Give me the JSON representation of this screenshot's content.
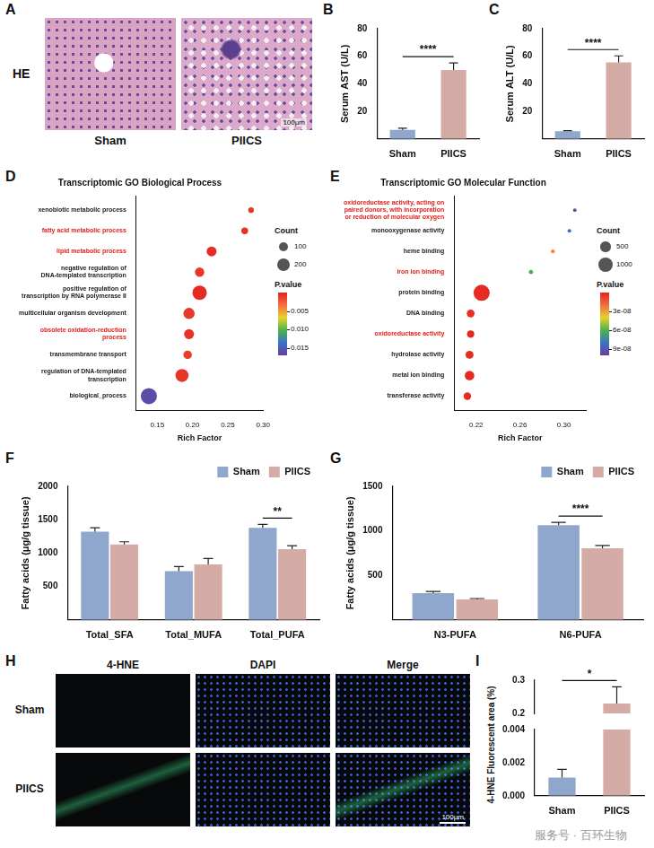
{
  "chart_data": [
    {
      "panel": "B",
      "type": "bar",
      "categories": [
        "Sham",
        "PIICS"
      ],
      "values": [
        6.5,
        50
      ],
      "errors": [
        1.3,
        5.2
      ],
      "colors": [
        "#8fa6cd",
        "#d5aba5"
      ],
      "y_label": "Serum AST (U/L)",
      "ylim": [
        0,
        80
      ],
      "yticks": [
        0,
        20,
        40,
        60,
        80
      ],
      "grid": false,
      "significance": [
        {
          "label": "****"
        }
      ]
    },
    {
      "panel": "C",
      "type": "bar",
      "categories": [
        "Sham",
        "PIICS"
      ],
      "values": [
        5.5,
        55.5
      ],
      "errors": [
        0.5,
        4.8
      ],
      "colors": [
        "#8fa6cd",
        "#d5aba5"
      ],
      "y_label": "Serum ALT (U/L)",
      "ylim": [
        0,
        80
      ],
      "yticks": [
        0,
        20,
        40,
        60,
        80
      ],
      "grid": false,
      "significance": [
        {
          "label": "****"
        }
      ]
    },
    {
      "panel": "D",
      "type": "bubble",
      "title": "Transcriptomic GO Biological Process",
      "categories": [
        "xenobiotic metabolic process",
        "fatty acid metabolic process",
        "lipid metabolic process",
        "negative regulation of DNA-templated transcription",
        "positive regulation of transcription by RNA polymerase II",
        "multicellular organism development",
        "obsolete oxidation-reduction process",
        "transmembrane transport",
        "regulation of DNA-templated transcription",
        "biological_process"
      ],
      "x": [
        0.283,
        0.274,
        0.227,
        0.21,
        0.21,
        0.195,
        0.195,
        0.193,
        0.185,
        0.138
      ],
      "counts": [
        35,
        50,
        110,
        95,
        230,
        140,
        110,
        80,
        190,
        290
      ],
      "p_values": [
        0.0008,
        0.0006,
        0.0004,
        0.0009,
        0.0003,
        0.001,
        0.0007,
        0.0012,
        0.0008,
        0.016
      ],
      "highlight": [
        "fatty acid metabolic process",
        "lipid metabolic process",
        "obsolete oxidation-reduction process"
      ],
      "x_label": "Rich Factor",
      "xlim": [
        0.12,
        0.3
      ],
      "xticks": [
        0.15,
        {
          "value": 0.2,
          "label": "0.20"
        },
        0.25,
        {
          "value": 0.3,
          "label": "0.30"
        }
      ],
      "size_legend": {
        "title": "Count",
        "values": [
          100,
          200
        ]
      },
      "color_bar": {
        "title": "P.value",
        "range": [
          0,
          0.017
        ],
        "ticks": [
          0.005,
          {
            "value": 0.01,
            "label": "0.010"
          },
          0.015
        ]
      },
      "grid": false
    },
    {
      "panel": "E",
      "type": "bubble",
      "title": "Transcriptomic GO Molecular Function",
      "categories": [
        "oxidoreductase activity, acting on paired donors, with incorporation or reduction of molecular oxygen",
        "monooxygenase activity",
        "heme binding",
        "iron ion binding",
        "protein binding",
        "DNA binding",
        "oxidoreductase activity",
        "hydrolase activity",
        "metal ion binding",
        "transferase activity"
      ],
      "x": [
        0.31,
        0.305,
        0.29,
        0.27,
        0.225,
        0.215,
        0.215,
        0.214,
        0.214,
        0.212
      ],
      "counts": [
        60,
        65,
        75,
        90,
        1300,
        300,
        260,
        320,
        450,
        280
      ],
      "p_values": [
        9.5e-08,
        8.2e-08,
        2.5e-08,
        6e-08,
        2e-09,
        3e-09,
        1e-09,
        2e-09,
        1.5e-09,
        2e-09
      ],
      "highlight": [
        "oxidoreductase activity, acting on paired donors, with incorporation or reduction of molecular oxygen",
        "iron ion binding",
        "oxidoreductase activity"
      ],
      "x_label": "Rich Factor",
      "xlim": [
        0.2,
        0.32
      ],
      "xticks": [
        0.22,
        0.26,
        {
          "value": 0.3,
          "label": "0.30"
        }
      ],
      "size_legend": {
        "title": "Count",
        "values": [
          500,
          1000
        ]
      },
      "color_bar": {
        "title": "P.value",
        "range": [
          0,
          1e-07
        ],
        "ticks": [
          {
            "value": 3e-08,
            "label": "3e-08"
          },
          {
            "value": 6e-08,
            "label": "6e-08"
          },
          {
            "value": 9e-08,
            "label": "9e-08"
          }
        ]
      },
      "grid": false
    },
    {
      "panel": "F",
      "type": "bar",
      "categories": [
        "Total_SFA",
        "Total_MUFA",
        "Total_PUFA"
      ],
      "series": [
        {
          "name": "Sham",
          "color": "#8fa6cd",
          "values": [
            1320,
            730,
            1380
          ],
          "errors": [
            60,
            70,
            50
          ]
        },
        {
          "name": "PIICS",
          "color": "#d5aba5",
          "values": [
            1130,
            830,
            1060
          ],
          "errors": [
            40,
            90,
            50
          ]
        }
      ],
      "y_label": "Fatty acids (μg/g tissue)",
      "ylim": [
        0,
        2000
      ],
      "yticks": [
        0,
        500,
        1000,
        1500,
        2000
      ],
      "legend": "top-right",
      "grid": false,
      "significance": [
        {
          "category": "Total_PUFA",
          "label": "**"
        }
      ]
    },
    {
      "panel": "G",
      "type": "bar",
      "categories": [
        "N3-PUFA",
        "N6-PUFA"
      ],
      "series": [
        {
          "name": "Sham",
          "color": "#8fa6cd",
          "values": [
            300,
            1065
          ],
          "errors": [
            20,
            30
          ]
        },
        {
          "name": "PIICS",
          "color": "#d5aba5",
          "values": [
            230,
            805
          ],
          "errors": [
            10,
            30
          ]
        }
      ],
      "y_label": "Fatty acids (μg/g tissue)",
      "ylim": [
        0,
        1500
      ],
      "yticks": [
        0,
        500,
        1000,
        1500
      ],
      "legend": "top-right",
      "grid": false,
      "significance": [
        {
          "category": "N6-PUFA",
          "label": "****"
        }
      ]
    },
    {
      "panel": "I",
      "type": "bar",
      "categories": [
        "Sham",
        "PIICS"
      ],
      "values": [
        0.0011,
        0.23
      ],
      "errors": [
        0.0005,
        0.05
      ],
      "colors": [
        "#8fa6cd",
        "#d5aba5"
      ],
      "y_label": "4-HNE Fluorescent area (%)",
      "ylim": [
        0,
        0.3
      ],
      "yticks": [
        {
          "value": 0,
          "label": "0.000"
        },
        0.002,
        0.004,
        0.2,
        0.3
      ],
      "axis_break": [
        0.004,
        0.2
      ],
      "grid": false,
      "significance": [
        {
          "label": "*"
        }
      ]
    }
  ],
  "image_panels": [
    {
      "panel": "A",
      "row_label": "HE",
      "images": [
        {
          "label": "Sham"
        },
        {
          "label": "PIICS",
          "scale_bar": "100μm"
        }
      ]
    },
    {
      "panel": "H",
      "columns": [
        "4-HNE",
        "DAPI",
        "Merge"
      ],
      "rows": [
        "Sham",
        "PIICS"
      ],
      "scale_bar": "100μm"
    }
  ],
  "watermark": "服务号 · 百环生物"
}
